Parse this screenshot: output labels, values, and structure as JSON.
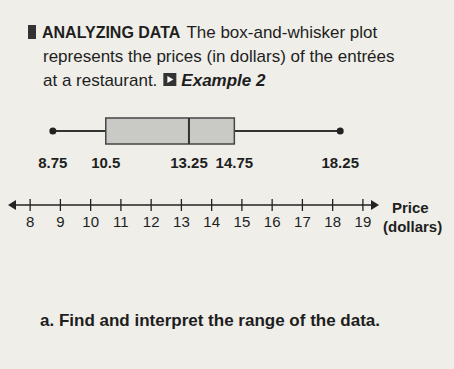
{
  "chart_data": {
    "type": "box",
    "heading": "ANALYZING DATA",
    "text_lines": [
      "The box-and-whisker plot",
      "represents the prices (in dollars) of the entrées",
      "at a restaurant."
    ],
    "example": "Example 2",
    "question": "a. Find and interpret the range of the data.",
    "x_label_lines": [
      "Price",
      "(dollars)"
    ],
    "box": {
      "min": 8.75,
      "q1": 10.5,
      "median": 13.25,
      "q3": 14.75,
      "max": 18.25
    },
    "xlim": [
      7.4,
      19.4
    ],
    "xticks": [
      8,
      9,
      10,
      11,
      12,
      13,
      14,
      15,
      16,
      17,
      18,
      19
    ]
  }
}
